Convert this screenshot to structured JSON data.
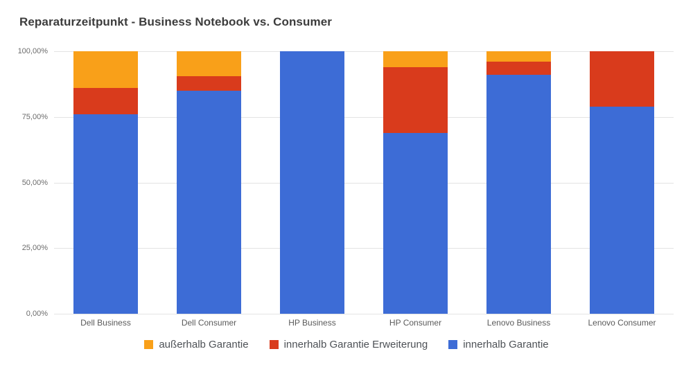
{
  "title": "Reparaturzeitpunkt - Business Notebook vs. Consumer",
  "chart_data": {
    "type": "bar",
    "stacked": true,
    "percent_stacked": true,
    "title": "Reparaturzeitpunkt - Business Notebook vs. Consumer",
    "categories": [
      "Dell Business",
      "Dell Consumer",
      "HP Business",
      "HP Consumer",
      "Lenovo Business",
      "Lenovo Consumer"
    ],
    "series": [
      {
        "name": "innerhalb Garantie",
        "color": "#3d6cd6",
        "values": [
          76,
          85,
          100,
          69,
          91,
          79
        ]
      },
      {
        "name": "innerhalb Garantie Erweiterung",
        "color": "#d93b1c",
        "values": [
          10,
          5.5,
          0,
          25,
          5,
          21
        ]
      },
      {
        "name": "außerhalb Garantie",
        "color": "#f9a019",
        "values": [
          14,
          9.5,
          0,
          6,
          4,
          0
        ]
      }
    ],
    "y_ticks": [
      "0,00%",
      "25,00%",
      "50,00%",
      "75,00%",
      "100,00%"
    ],
    "ylim": [
      0,
      100
    ],
    "xlabel": "",
    "ylabel": "",
    "grid": true,
    "legend_position": "bottom",
    "legend_order": [
      "außerhalb Garantie",
      "innerhalb Garantie Erweiterung",
      "innerhalb Garantie"
    ]
  }
}
